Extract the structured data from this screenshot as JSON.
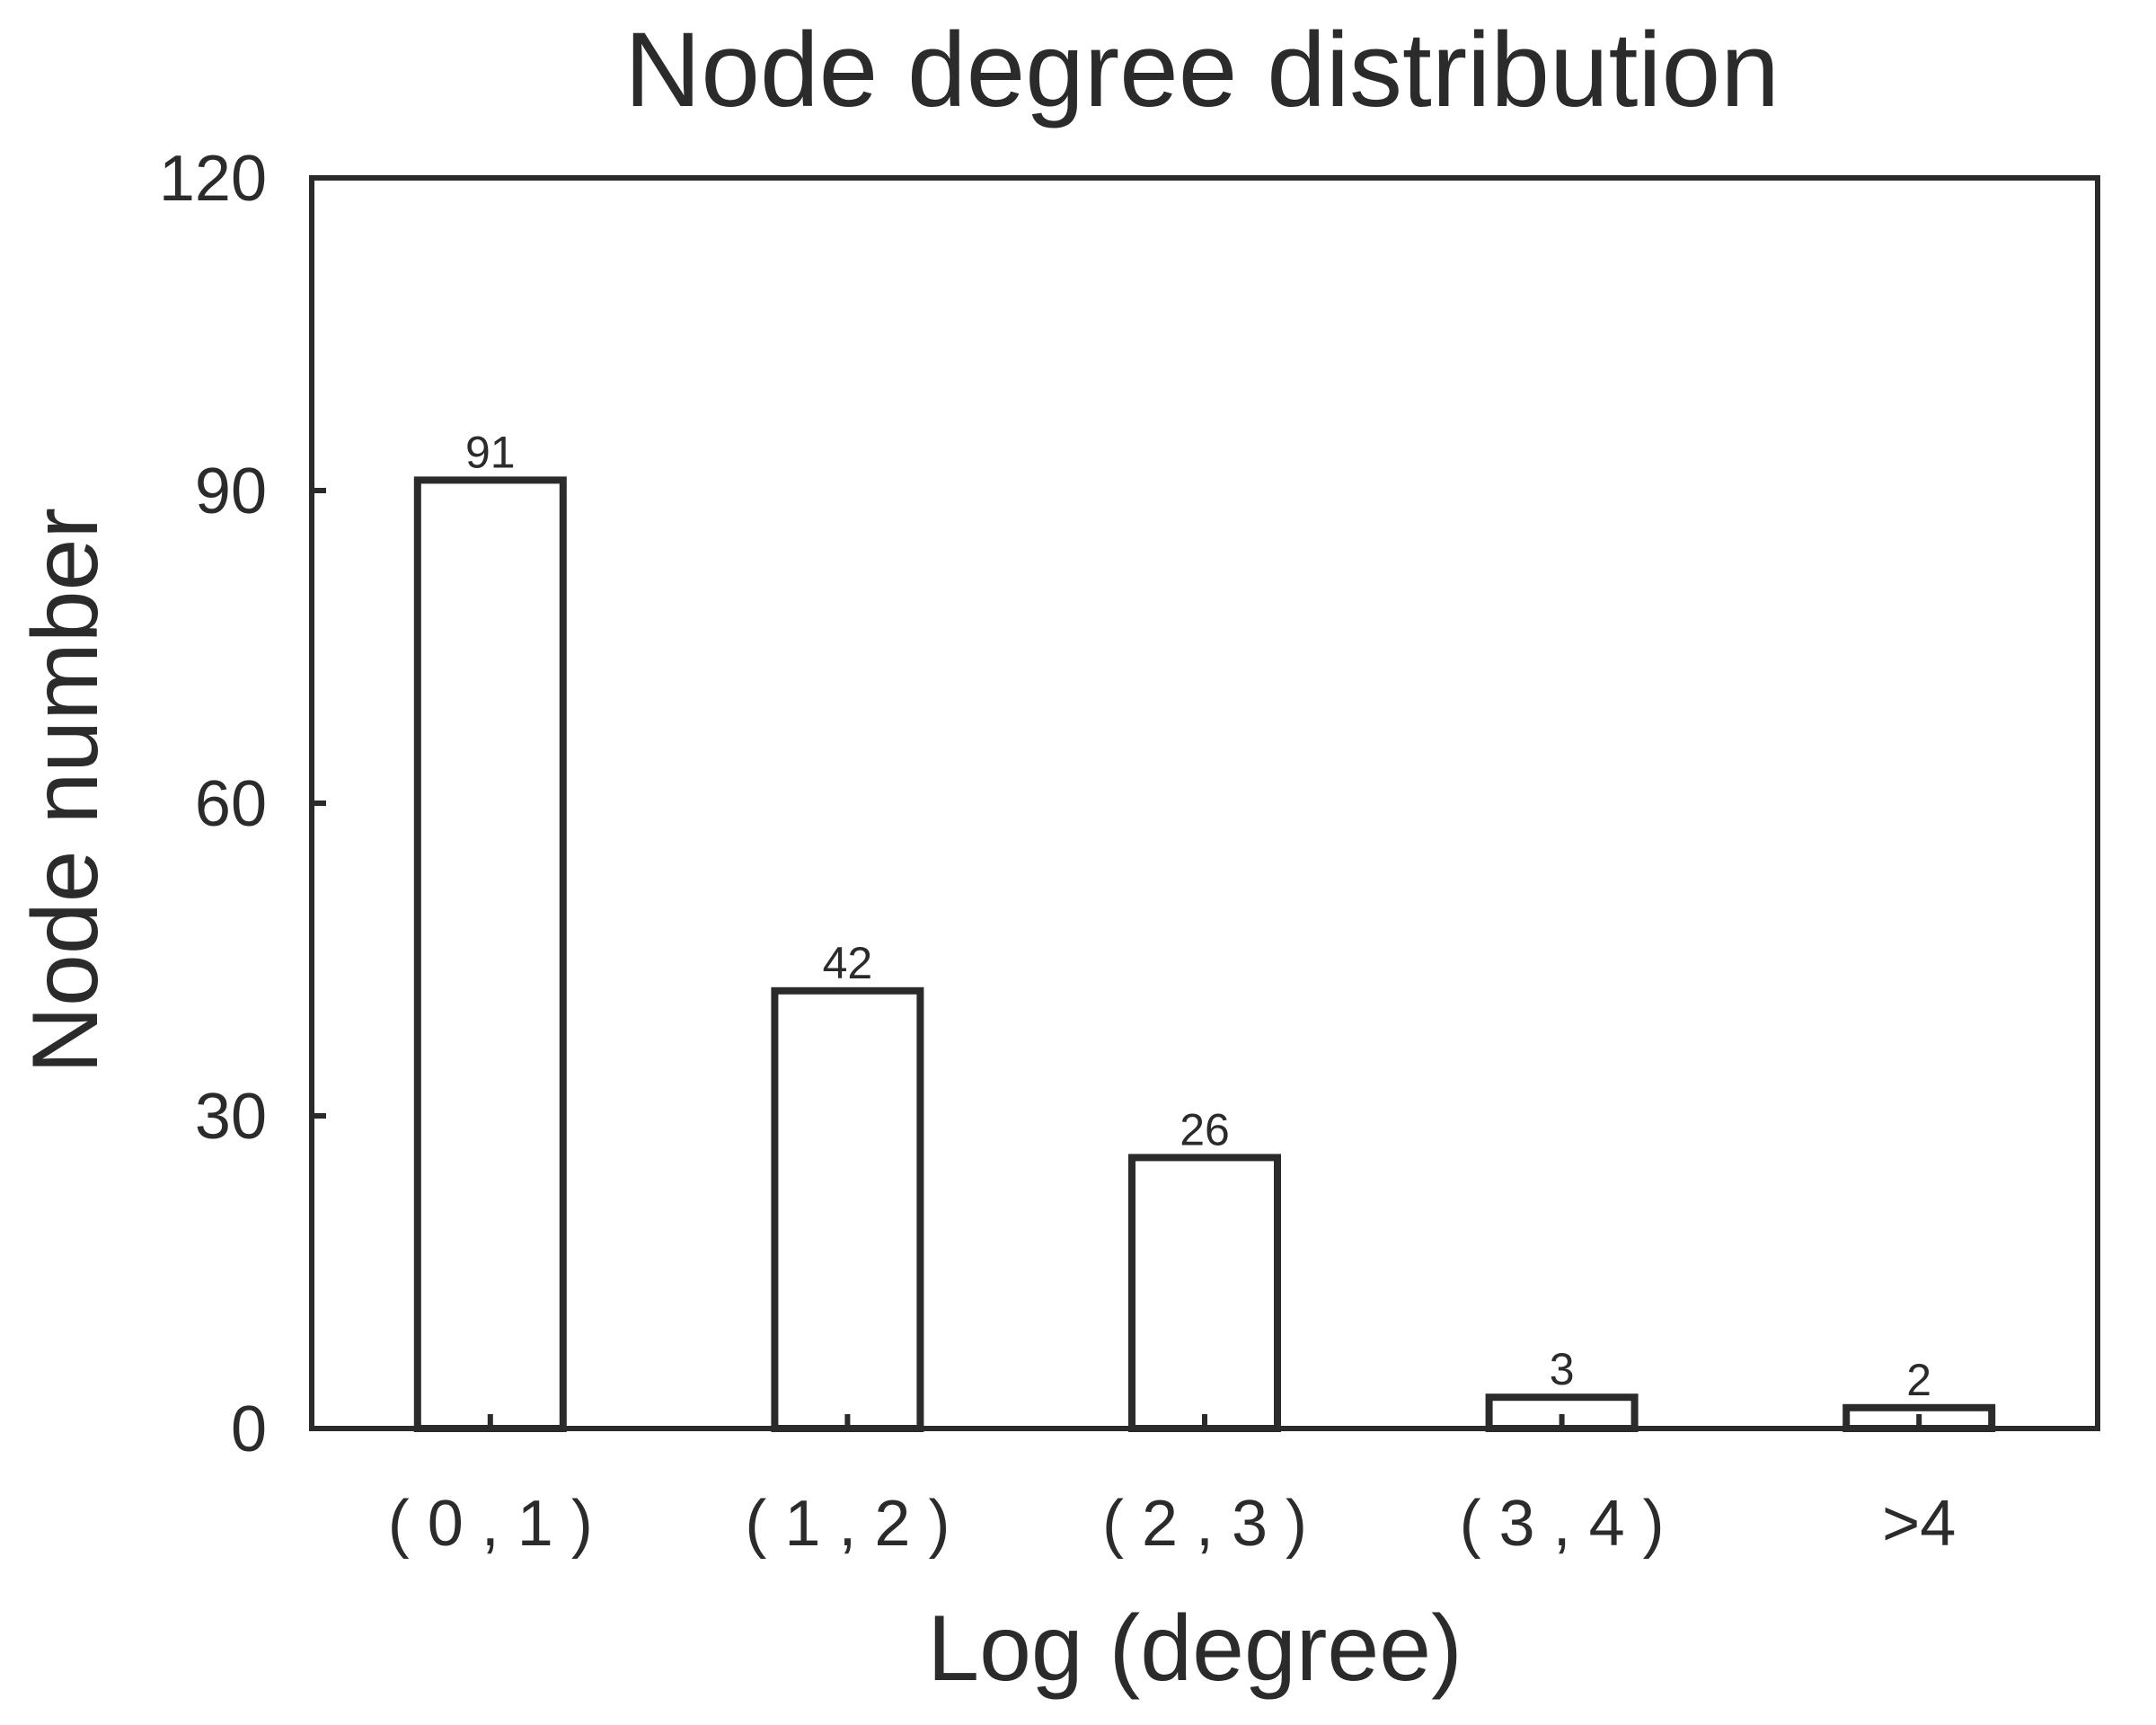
{
  "chart_data": {
    "type": "bar",
    "title": "Node degree distribution",
    "xlabel": "Log (degree)",
    "ylabel": "Node number",
    "categories": [
      "( 0 , 1 )",
      "( 1 , 2 )",
      "( 2 , 3 )",
      "( 3 , 4 )",
      ">4"
    ],
    "values": [
      91,
      42,
      26,
      3,
      2
    ],
    "data_labels": [
      "91",
      "42",
      "26",
      "3",
      "2"
    ],
    "ylim": [
      0,
      120
    ],
    "yticks": [
      0,
      30,
      60,
      90,
      120
    ],
    "grid": false,
    "legend": "none",
    "colors": {
      "bar_fill": "#ffffff",
      "bar_stroke": "#2b2b2b",
      "text": "#2b2b2b"
    }
  }
}
